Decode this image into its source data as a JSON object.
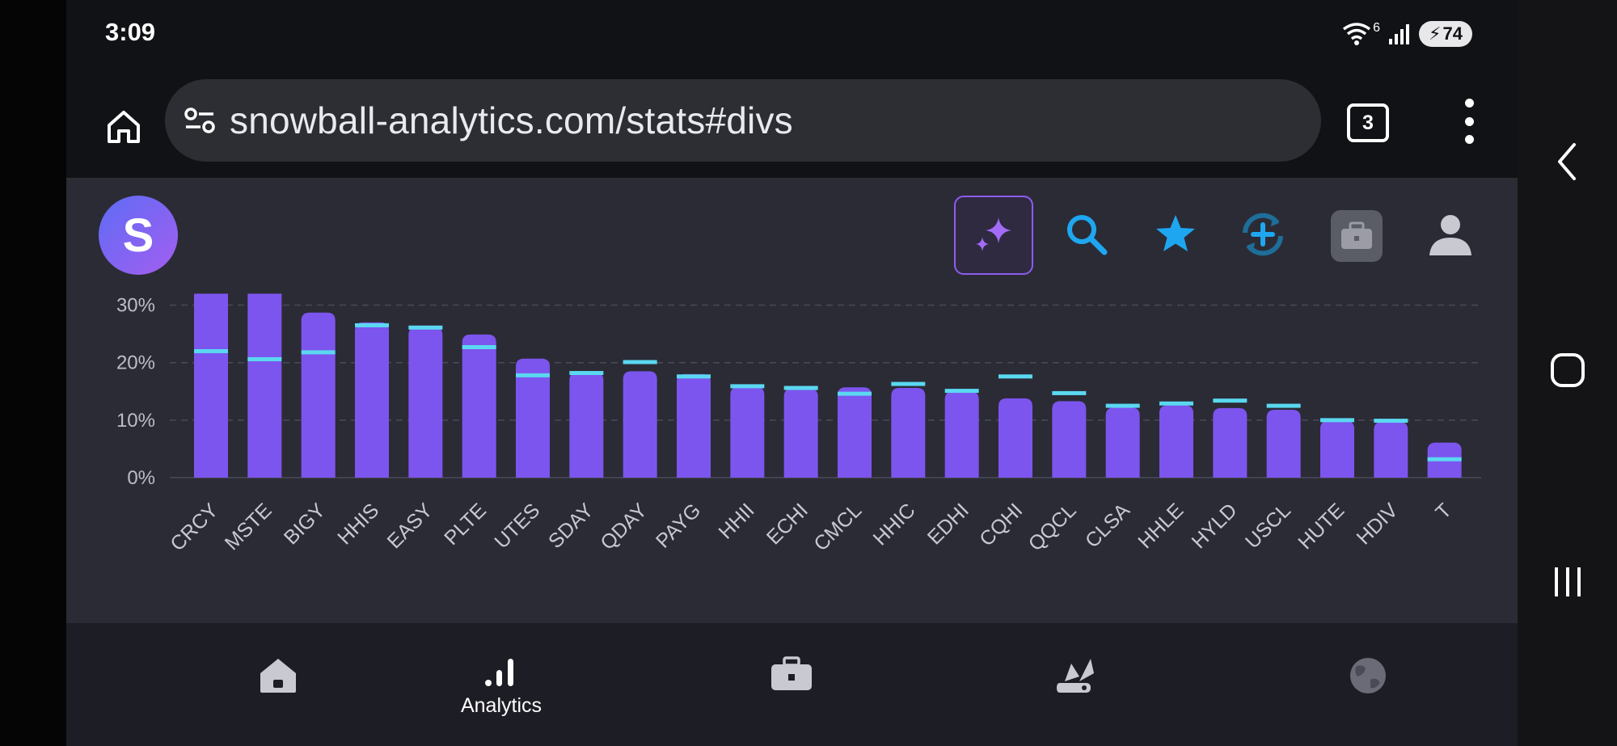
{
  "status_bar": {
    "time": "3:09",
    "battery": "74",
    "wifi_tag": "6"
  },
  "browser": {
    "url": "snowball-analytics.com/stats#divs",
    "tab_count": "3"
  },
  "app": {
    "logo_letter": "S"
  },
  "colors": {
    "bar": "#7c55ee",
    "marker": "#5ad8f0",
    "panel": "#2b2b36",
    "accent": "#8e5cf0",
    "icon_blue": "#1ea7f0"
  },
  "chart_data": {
    "type": "bar",
    "categories": [
      "CRCY",
      "MSTE",
      "BIGY",
      "HHIS",
      "EASY",
      "PLTE",
      "UTES",
      "SDAY",
      "QDAY",
      "PAYG",
      "HHII",
      "ECHI",
      "CMCL",
      "HHIC",
      "EDHI",
      "CQHI",
      "QQCL",
      "CLSA",
      "HHLE",
      "HYLD",
      "USCL",
      "HUTE",
      "HDIV",
      "T"
    ],
    "series": [
      {
        "values": [
          32,
          32,
          28.7,
          27.0,
          26.2,
          24.9,
          20.7,
          18.3,
          18.5,
          18.0,
          15.8,
          15.5,
          15.7,
          15.6,
          15.0,
          13.8,
          13.3,
          12.2,
          12.6,
          12.1,
          11.8,
          9.9,
          9.7,
          6.1
        ]
      },
      {
        "values": [
          22.0,
          20.6,
          21.8,
          26.5,
          26.1,
          22.7,
          17.8,
          18.2,
          20.1,
          17.6,
          15.9,
          15.6,
          14.6,
          16.3,
          15.1,
          17.6,
          14.7,
          12.5,
          12.9,
          13.4,
          12.5,
          10.0,
          9.9,
          3.2
        ]
      }
    ],
    "y_ticks": [
      "0%",
      "10%",
      "20%",
      "30%"
    ],
    "ylim": [
      0,
      32
    ],
    "grid": true
  },
  "bottom_nav": {
    "items": [
      {
        "id": "home",
        "label": ""
      },
      {
        "id": "analytics",
        "label": "Analytics"
      },
      {
        "id": "portfolio",
        "label": ""
      },
      {
        "id": "tools",
        "label": ""
      },
      {
        "id": "world",
        "label": ""
      }
    ]
  }
}
